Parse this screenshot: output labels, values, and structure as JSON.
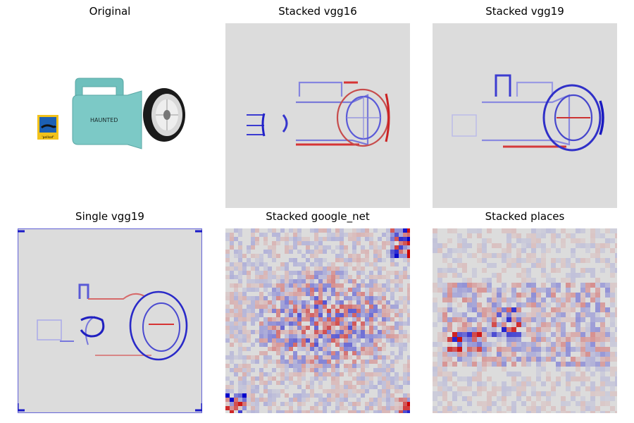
{
  "panels": [
    {
      "title": "Original"
    },
    {
      "title": "Stacked vgg16"
    },
    {
      "title": "Stacked vgg19"
    },
    {
      "title": "Single vgg19"
    },
    {
      "title": "Stacked google_net"
    },
    {
      "title": "Stacked places"
    }
  ],
  "original_image": {
    "box_label": "'pellsaf'",
    "lamp_text": "HAUNTED"
  },
  "colors": {
    "background_gray": "#dcdcdc",
    "positive": "#cc0000",
    "negative": "#0000cc",
    "lamp_body": "#7cc9c6"
  }
}
